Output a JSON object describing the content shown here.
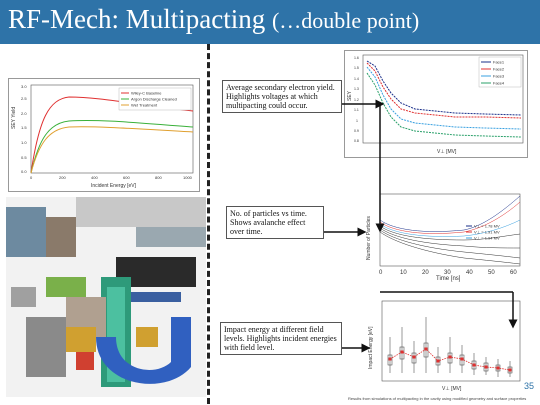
{
  "header": {
    "title_main": "RF-Mech: Multipacting ",
    "title_sub": "(…double point)"
  },
  "notes": {
    "yield": "Average secondary electron yield. Highlights voltages at which multipacting could occur.",
    "particles": "No. of particles vs time. Shows avalanche effect over time.",
    "impact": "Impact energy at different field levels. Highlights incident energies with field level."
  },
  "fig_sey": {
    "ylabel": "SEY Yield",
    "xlabel": "Incident Energy [eV]",
    "legend": [
      "Wiley-C Baseline",
      "Argon Discharge Cleaned",
      "Wet Treatment"
    ],
    "yticks": [
      "0.0",
      "0.5",
      "1.0",
      "1.5",
      "2.0",
      "2.5",
      "3.0"
    ],
    "xticks": [
      "0",
      "200",
      "400",
      "600",
      "800",
      "1000"
    ],
    "colors": [
      "#e03030",
      "#3ab03a",
      "#e0a030"
    ]
  },
  "fig_face": {
    "ylabel": "SEY",
    "xlabel": "V⊥ [MV]",
    "legend": [
      "Face1",
      "Face2",
      "Face3",
      "Face4"
    ],
    "yticks": [
      "1.6",
      "1.5",
      "1.4",
      "1.3",
      "1.2",
      "1.1",
      "1",
      "0.9",
      "0.8"
    ],
    "colors": [
      "#1a2f8a",
      "#e03030",
      "#38a0e0",
      "#2aa06a"
    ]
  },
  "fig_particles": {
    "ylabel": "Number of Particles",
    "xlabel": "Time [ns]",
    "xticks": [
      "0",
      "10",
      "20",
      "30",
      "40",
      "50",
      "60"
    ],
    "legend": [
      "V⊥ = 1.78 MV",
      "V⊥ = 1.91 MV",
      "V⊥ = 1.94 MV"
    ]
  },
  "fig_impact": {
    "ylabel": "Impact Energy [eV]",
    "xlabel": "V⊥ [MV]"
  },
  "page_number": "35",
  "footnote": "Results from simulations of multipacting in the cavity using modified geometry and surface properties"
}
